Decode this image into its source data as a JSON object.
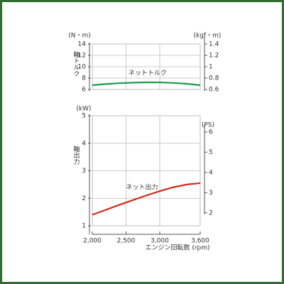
{
  "chart_data": [
    {
      "type": "line",
      "yunit": "(N・m)",
      "y2unit": "(kgf・m)",
      "ylabel": "軸トルク",
      "x": [
        2000,
        2200,
        2400,
        2600,
        2800,
        3000,
        3200,
        3400,
        3600
      ],
      "xlim": [
        2000,
        3600
      ],
      "ylim": [
        6,
        14
      ],
      "yticks": [
        6,
        8,
        10,
        12,
        14
      ],
      "y2lim": [
        0.6,
        1.4
      ],
      "y2ticks": [
        0.6,
        0.8,
        1.0,
        1.2,
        1.4
      ],
      "series": [
        {
          "name": "ネットトルク",
          "color": "#1e9a4c",
          "values": [
            6.75,
            6.95,
            7.1,
            7.2,
            7.25,
            7.25,
            7.15,
            7.0,
            6.75
          ]
        }
      ],
      "grid": true
    },
    {
      "type": "line",
      "yunit": "(kW)",
      "y2unit": "(PS)",
      "ylabel": "軸出力",
      "xlabel": "エンジン回転数 (rpm)",
      "x": [
        2000,
        2200,
        2400,
        2600,
        2800,
        3000,
        3200,
        3400,
        3600
      ],
      "xlim": [
        2000,
        3600
      ],
      "xticks": [
        {
          "value": 2000,
          "label": "2,000"
        },
        {
          "value": 2500,
          "label": "2,500"
        },
        {
          "value": 3000,
          "label": "3,000"
        },
        {
          "value": 3600,
          "label": "3,600"
        }
      ],
      "ylim": [
        1,
        5
      ],
      "yticks": [
        1,
        2,
        3,
        4,
        5
      ],
      "y2lim": [
        1.36,
        6.8
      ],
      "y2ticks": [
        2,
        3,
        4,
        5,
        6
      ],
      "series": [
        {
          "name": "ネット出力",
          "color": "#d22a18",
          "values": [
            1.4,
            1.58,
            1.76,
            1.93,
            2.1,
            2.26,
            2.4,
            2.5,
            2.55
          ]
        }
      ],
      "grid": true
    }
  ]
}
